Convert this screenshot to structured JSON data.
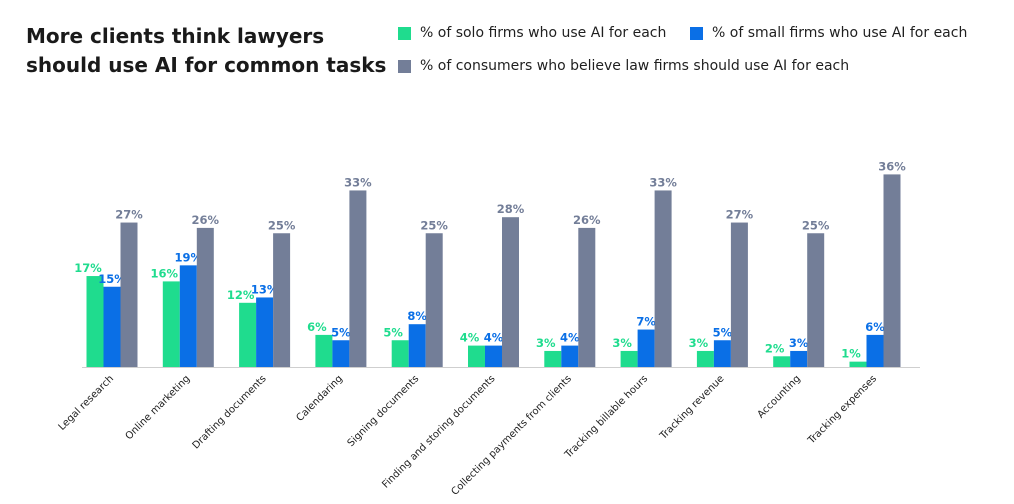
{
  "title_lines": [
    "More clients think lawyers",
    "should use AI for common tasks"
  ],
  "colors": {
    "solo": "#1fdc8e",
    "small": "#0a6fe6",
    "consumers": "#737e98",
    "axis": "#cfcfcf"
  },
  "chart_data": {
    "type": "bar",
    "categories": [
      "Legal research",
      "Online marketing",
      "Drafting documents",
      "Calendaring",
      "Signing documents",
      "Finding and storing documents",
      "Collecting payments from clients",
      "Tracking billable hours",
      "Tracking revenue",
      "Accounting",
      "Tracking expenses"
    ],
    "series": [
      {
        "name": "% of solo firms who use AI for each",
        "values": [
          17,
          16,
          12,
          6,
          5,
          4,
          3,
          3,
          3,
          2,
          1
        ]
      },
      {
        "name": "% of small firms who use AI for each",
        "values": [
          15,
          19,
          13,
          5,
          8,
          4,
          4,
          7,
          5,
          3,
          6
        ]
      },
      {
        "name": "% of consumers who believe law firms should use AI for each",
        "values": [
          27,
          26,
          25,
          33,
          25,
          28,
          26,
          33,
          27,
          25,
          36
        ]
      }
    ],
    "value_suffix": "%",
    "ylim": [
      0,
      36
    ],
    "legend_position": "top-right",
    "grid": false
  }
}
